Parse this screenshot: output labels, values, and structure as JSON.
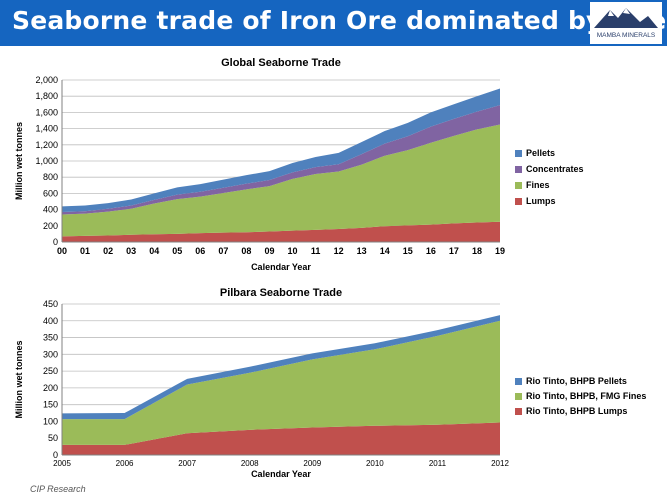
{
  "slide": {
    "title": "Seaborne trade of Iron Ore dominated by fines",
    "logo_text": "MAMBA MINERALS",
    "source": "CIP Research"
  },
  "colors": {
    "header_bg": "#1565c0",
    "lumps": "#c0504d",
    "fines": "#9bbb59",
    "concentrates": "#8064a2",
    "pellets": "#4f81bd"
  },
  "chart_data": [
    {
      "type": "area",
      "stacked": true,
      "title": "Global Seaborne Trade",
      "xlabel": "Calendar Year",
      "ylabel": "Million wet tonnes",
      "x": [
        "00",
        "01",
        "02",
        "03",
        "04",
        "05",
        "06",
        "07",
        "08",
        "09",
        "10",
        "11",
        "12",
        "13",
        "14",
        "15",
        "16",
        "17",
        "18",
        "19"
      ],
      "ylim": [
        0,
        2000
      ],
      "yticks": [
        0,
        200,
        400,
        600,
        800,
        1000,
        1200,
        1400,
        1600,
        1800,
        2000
      ],
      "ytick_labels": [
        "0",
        "200",
        "400",
        "600",
        "800",
        "1,000",
        "1,200",
        "1,400",
        "1,600",
        "1,800",
        "2,000"
      ],
      "grid": true,
      "legend_position": "right",
      "series": [
        {
          "name": "Lumps",
          "color": "#c0504d",
          "values": [
            70,
            75,
            80,
            90,
            95,
            100,
            110,
            115,
            120,
            130,
            140,
            150,
            160,
            175,
            195,
            205,
            215,
            230,
            240,
            250
          ]
        },
        {
          "name": "Fines",
          "color": "#9bbb59",
          "values": [
            270,
            275,
            295,
            320,
            380,
            430,
            450,
            490,
            530,
            560,
            640,
            690,
            710,
            780,
            870,
            930,
            1010,
            1080,
            1150,
            1200
          ]
        },
        {
          "name": "Concentrates",
          "color": "#8064a2",
          "values": [
            30,
            30,
            35,
            40,
            45,
            55,
            60,
            65,
            70,
            75,
            80,
            85,
            90,
            130,
            150,
            170,
            200,
            210,
            220,
            240
          ]
        },
        {
          "name": "Pellets",
          "color": "#4f81bd",
          "values": [
            70,
            70,
            70,
            75,
            80,
            90,
            95,
            100,
            105,
            110,
            115,
            125,
            140,
            150,
            155,
            165,
            175,
            180,
            190,
            205
          ]
        }
      ]
    },
    {
      "type": "area",
      "stacked": true,
      "title": "Pilbara Seaborne Trade",
      "xlabel": "Calendar Year",
      "ylabel": "Million wet tonnes",
      "x": [
        "2005",
        "2006",
        "2007",
        "2008",
        "2009",
        "2010",
        "2011",
        "2012"
      ],
      "ylim": [
        0,
        450
      ],
      "yticks": [
        0,
        50,
        100,
        150,
        200,
        250,
        300,
        350,
        400,
        450
      ],
      "ytick_labels": [
        "0",
        "50",
        "100",
        "150",
        "200",
        "250",
        "300",
        "350",
        "400",
        "450"
      ],
      "grid": true,
      "legend_position": "right",
      "series": [
        {
          "name": "Rio Tinto, BHPB Lumps",
          "color": "#c0504d",
          "values": [
            30,
            30,
            65,
            75,
            82,
            87,
            90,
            97
          ]
        },
        {
          "name": "Rio Tinto, BHPB, FMG Fines",
          "color": "#9bbb59",
          "values": [
            77,
            77,
            145,
            170,
            203,
            228,
            265,
            303
          ]
        },
        {
          "name": "Rio Tinto, BHPB Pellets",
          "color": "#4f81bd",
          "values": [
            17,
            18,
            17,
            18,
            18,
            18,
            17,
            17
          ]
        }
      ]
    }
  ]
}
